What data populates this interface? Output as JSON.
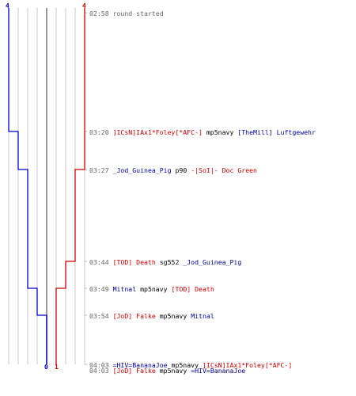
{
  "colors": {
    "blue_team": "#0000cc",
    "red_team": "#cc0000",
    "grid": "#c8c8c8",
    "center": "#808080",
    "dash": "#bbbbbb"
  },
  "chart_data": {
    "type": "line",
    "start_score": {
      "blue": "4",
      "red": "4"
    },
    "end_score": {
      "blue": "0",
      "red": "1"
    },
    "max_players": 4,
    "series": [
      {
        "team": "blue",
        "values": [
          4,
          3,
          2,
          2,
          1,
          0,
          0
        ]
      },
      {
        "team": "red",
        "values": [
          4,
          4,
          3,
          2,
          1,
          1,
          1
        ]
      }
    ]
  },
  "events": [
    {
      "time": "02:58",
      "parts": [
        {
          "text": "round started",
          "color": "gray"
        }
      ]
    },
    {
      "time": "03:20",
      "parts": [
        {
          "text": "]ICsN]IAx1*Foley[*AFC-]",
          "color": "red"
        },
        {
          "text": " mp5navy ",
          "color": "blk"
        },
        {
          "text": "[TheMill] Luftgewehr",
          "color": "blue"
        }
      ]
    },
    {
      "time": "03:27",
      "parts": [
        {
          "text": "_Jod_Guinea_Pig",
          "color": "blue"
        },
        {
          "text": " p90 ",
          "color": "blk"
        },
        {
          "text": "-|SoI|- Doc Green",
          "color": "red"
        }
      ]
    },
    {
      "time": "03:44",
      "parts": [
        {
          "text": "[TOD] Death",
          "color": "red"
        },
        {
          "text": " sg552 ",
          "color": "blk"
        },
        {
          "text": "_Jod_Guinea_Pig",
          "color": "blue"
        }
      ]
    },
    {
      "time": "03:49",
      "parts": [
        {
          "text": "Mitnal",
          "color": "blue"
        },
        {
          "text": " mp5navy ",
          "color": "blk"
        },
        {
          "text": "[TOD] Death",
          "color": "red"
        }
      ]
    },
    {
      "time": "03:54",
      "parts": [
        {
          "text": "[JoD] Falke",
          "color": "red"
        },
        {
          "text": " mp5navy ",
          "color": "blk"
        },
        {
          "text": "Mitnal",
          "color": "blue"
        }
      ]
    },
    {
      "time": "04:03",
      "parts": [
        {
          "text": "=HIV=BananaJoe",
          "color": "blue"
        },
        {
          "text": " mp5navy ",
          "color": "blk"
        },
        {
          "text": "]ICsN]IAx1*Foley[*AFC-]",
          "color": "red"
        }
      ]
    },
    {
      "time": "04:03",
      "parts": [
        {
          "text": "[JoD] Falke",
          "color": "red"
        },
        {
          "text": " mp5navy ",
          "color": "blk"
        },
        {
          "text": "=HIV=BananaJoe",
          "color": "blue"
        }
      ]
    }
  ]
}
